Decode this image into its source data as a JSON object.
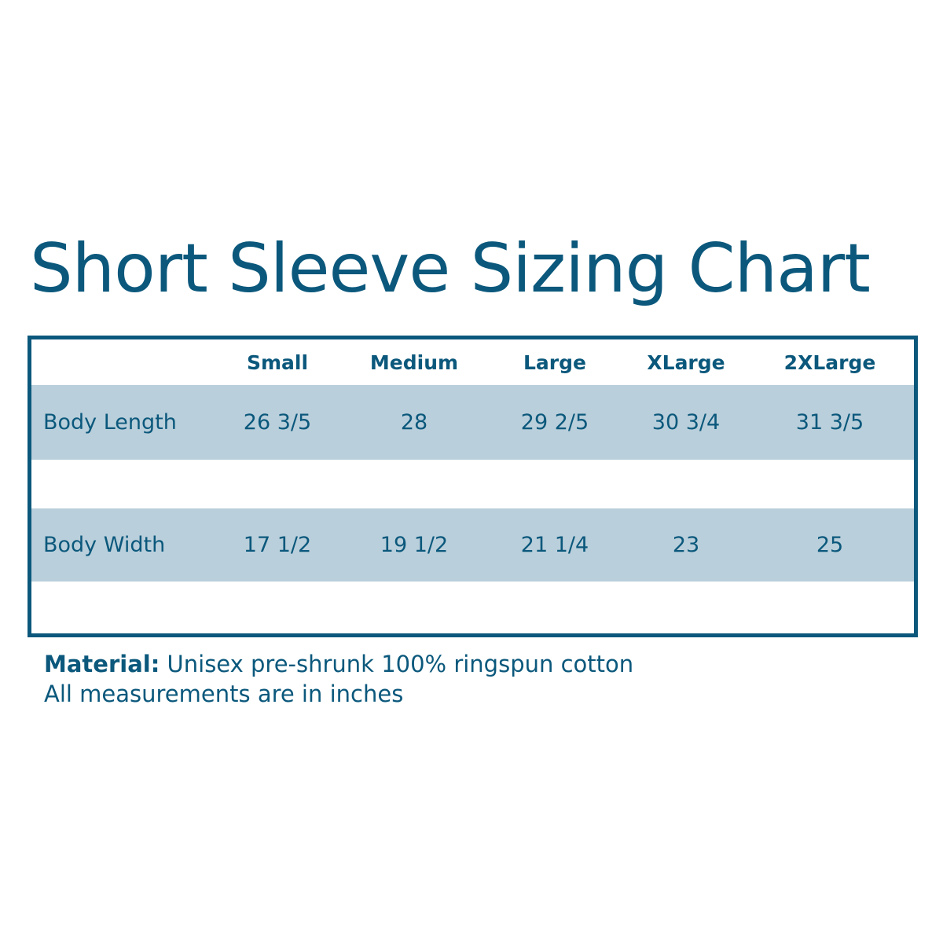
{
  "title": "Short Sleeve Sizing Chart",
  "table": {
    "columns": [
      "Small",
      "Medium",
      "Large",
      "XLarge",
      "2XLarge"
    ],
    "rows": [
      {
        "label": "Body Length",
        "values": [
          "26 3/5",
          "28",
          "29 2/5",
          "30 3/4",
          "31 3/5"
        ]
      },
      {
        "label": "Body Width",
        "values": [
          "17 1/2",
          "19 1/2",
          "21 1/4",
          "23",
          "25"
        ]
      }
    ]
  },
  "notes": {
    "material_label": "Material:",
    "material_text": " Unisex pre-shrunk 100% ringspun cotton",
    "units": "All measurements are in inches"
  },
  "colors": {
    "primary": "#0b587c",
    "band": "#b9cfdb"
  }
}
